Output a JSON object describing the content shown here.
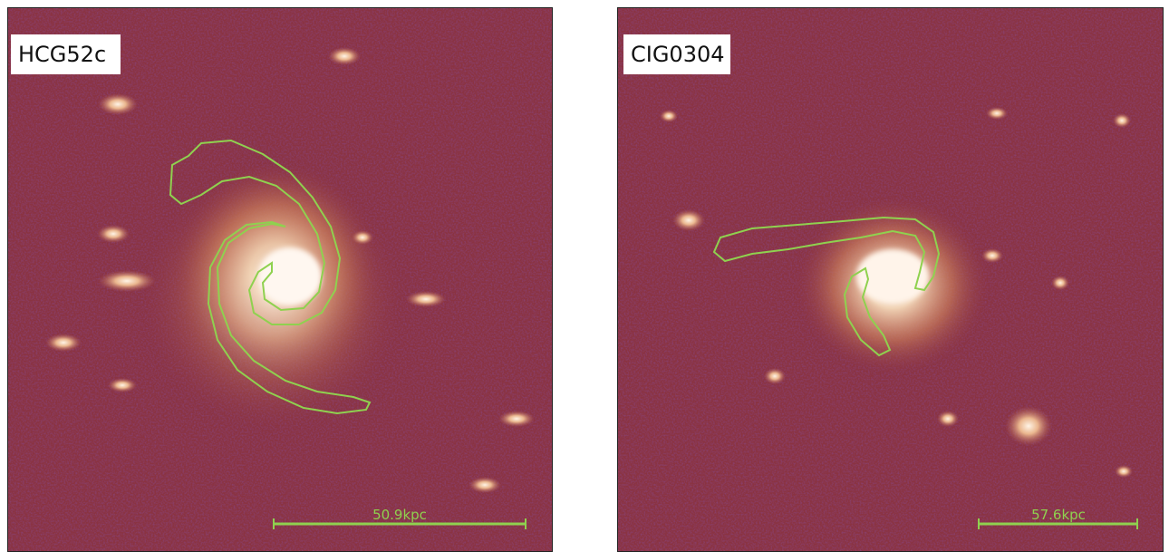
{
  "panels": [
    {
      "label": "HCG52c",
      "scale_bar": "50.9kpc"
    },
    {
      "label": "CIG0304",
      "scale_bar": "57.6kpc"
    }
  ]
}
